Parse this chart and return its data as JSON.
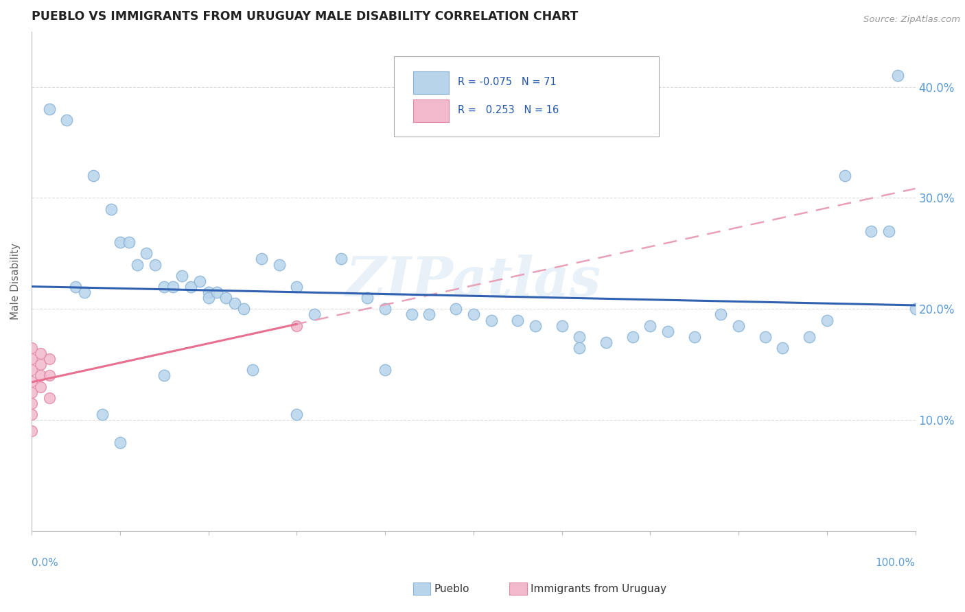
{
  "title": "PUEBLO VS IMMIGRANTS FROM URUGUAY MALE DISABILITY CORRELATION CHART",
  "source": "Source: ZipAtlas.com",
  "ylabel": "Male Disability",
  "watermark": "ZIPatlas",
  "pueblo_color": "#b8d4ea",
  "pueblo_edge": "#8ab4d8",
  "uruguay_color": "#f2b8cc",
  "uruguay_edge": "#e088a8",
  "trend_pueblo_color": "#3060b0",
  "trend_uruguay_solid_color": "#e87090",
  "trend_uruguay_dash_color": "#e8a0b8",
  "background_color": "#ffffff",
  "grid_color": "#cccccc",
  "legend_color": "#4472c4",
  "pueblo_x": [
    0.02,
    0.04,
    0.07,
    0.09,
    0.1,
    0.11,
    0.12,
    0.13,
    0.14,
    0.15,
    0.16,
    0.17,
    0.18,
    0.19,
    0.2,
    0.2,
    0.21,
    0.22,
    0.23,
    0.24,
    0.26,
    0.28,
    0.3,
    0.32,
    0.35,
    0.38,
    0.4,
    0.43,
    0.45,
    0.48,
    0.5,
    0.52,
    0.55,
    0.57,
    0.6,
    0.62,
    0.62,
    0.65,
    0.68,
    0.7,
    0.72,
    0.75,
    0.78,
    0.8,
    0.83,
    0.85,
    0.88,
    0.9,
    0.92,
    0.95,
    0.97,
    0.98,
    1.0,
    0.05,
    0.06,
    0.08,
    0.1,
    0.15,
    0.25,
    0.3,
    0.4
  ],
  "pueblo_y": [
    0.38,
    0.37,
    0.32,
    0.29,
    0.26,
    0.26,
    0.24,
    0.25,
    0.24,
    0.22,
    0.22,
    0.23,
    0.22,
    0.225,
    0.215,
    0.21,
    0.215,
    0.21,
    0.205,
    0.2,
    0.245,
    0.24,
    0.22,
    0.195,
    0.245,
    0.21,
    0.2,
    0.195,
    0.195,
    0.2,
    0.195,
    0.19,
    0.19,
    0.185,
    0.185,
    0.175,
    0.165,
    0.17,
    0.175,
    0.185,
    0.18,
    0.175,
    0.195,
    0.185,
    0.175,
    0.165,
    0.175,
    0.19,
    0.32,
    0.27,
    0.27,
    0.41,
    0.2,
    0.22,
    0.215,
    0.105,
    0.08,
    0.14,
    0.145,
    0.105,
    0.145
  ],
  "uruguay_x": [
    0.0,
    0.0,
    0.0,
    0.0,
    0.0,
    0.0,
    0.0,
    0.0,
    0.01,
    0.01,
    0.01,
    0.01,
    0.02,
    0.02,
    0.02,
    0.3
  ],
  "uruguay_y": [
    0.165,
    0.155,
    0.145,
    0.135,
    0.125,
    0.115,
    0.105,
    0.09,
    0.16,
    0.15,
    0.14,
    0.13,
    0.155,
    0.14,
    0.12,
    0.185
  ],
  "ytick_vals": [
    0.0,
    0.1,
    0.2,
    0.3,
    0.4
  ],
  "ytick_labels": [
    "",
    "10.0%",
    "20.0%",
    "30.0%",
    "40.0%"
  ],
  "xlim": [
    0.0,
    1.0
  ],
  "ylim": [
    0.0,
    0.45
  ]
}
